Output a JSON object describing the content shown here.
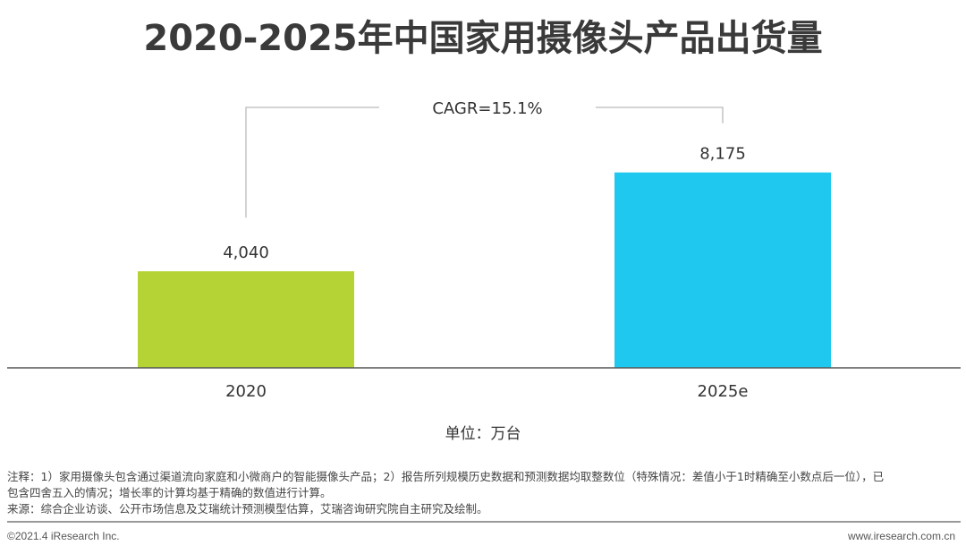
{
  "chart_data": {
    "type": "bar",
    "title": "2020-2025年中国家用摄像头产品出货量",
    "categories": [
      "2020",
      "2025e"
    ],
    "values": [
      4040,
      8175
    ],
    "value_labels": [
      "4,040",
      "8,175"
    ],
    "colors": [
      "#b5d334",
      "#1fc8ef"
    ],
    "annotation": "CAGR=15.1%",
    "ylabel": "",
    "xlabel": "",
    "unit_label": "单位：万台",
    "ylim": [
      0,
      8800
    ]
  },
  "notes": {
    "line1": "注释：1）家用摄像头包含通过渠道流向家庭和小微商户的智能摄像头产品；2）报告所列规模历史数据和预测数据均取整数位（特殊情况：差值小于1时精确至小数点后一位），已",
    "line2": "包含四舍五入的情况；增长率的计算均基于精确的数值进行计算。",
    "source": "来源：综合企业访谈、公开市场信息及艾瑞统计预测模型估算，艾瑞咨询研究院自主研究及绘制。"
  },
  "footer": {
    "copyright": "©2021.4 iResearch Inc.",
    "website": "www.iresearch.com.cn"
  }
}
